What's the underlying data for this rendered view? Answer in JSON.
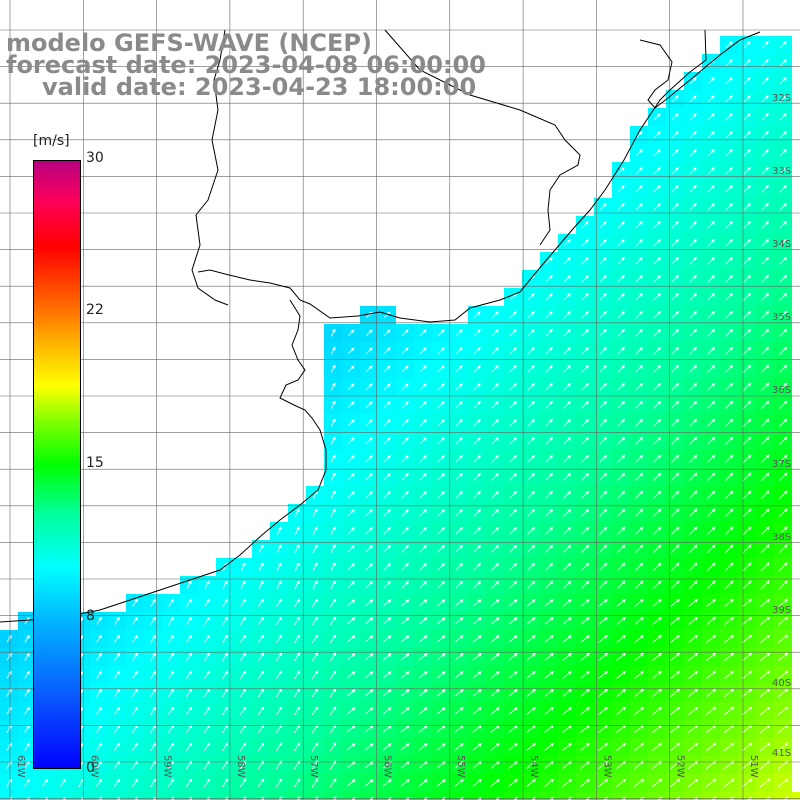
{
  "header": {
    "line1": "modelo GEFS-WAVE (NCEP)",
    "line2": "forecast date: 2023-04-08 06:00:00",
    "line3": "valid date: 2023-04-23 18:00:00"
  },
  "colorbar": {
    "unit": "[m/s]",
    "ticks": [
      "30",
      "22",
      "15",
      "8",
      "0"
    ],
    "tick_values": [
      30,
      22,
      15,
      8,
      0
    ],
    "colors": [
      "#0000ff",
      "#00b3ff",
      "#00ffff",
      "#00ff00",
      "#ffff00",
      "#ff6a00",
      "#ff0000",
      "#b80082"
    ]
  },
  "map": {
    "lat_labels": [
      "32S",
      "33S",
      "34S",
      "35S",
      "36S",
      "37S",
      "38S",
      "39S",
      "40S",
      "41S"
    ],
    "lon_labels": [
      "61W",
      "60W",
      "59W",
      "58W",
      "57W",
      "56W",
      "55W",
      "54W",
      "53W",
      "52W",
      "51W"
    ],
    "land_color": "#ffffff",
    "coastline_color": "#000000",
    "grid_color": "#666666",
    "arrow_color": "#ffffff"
  }
}
